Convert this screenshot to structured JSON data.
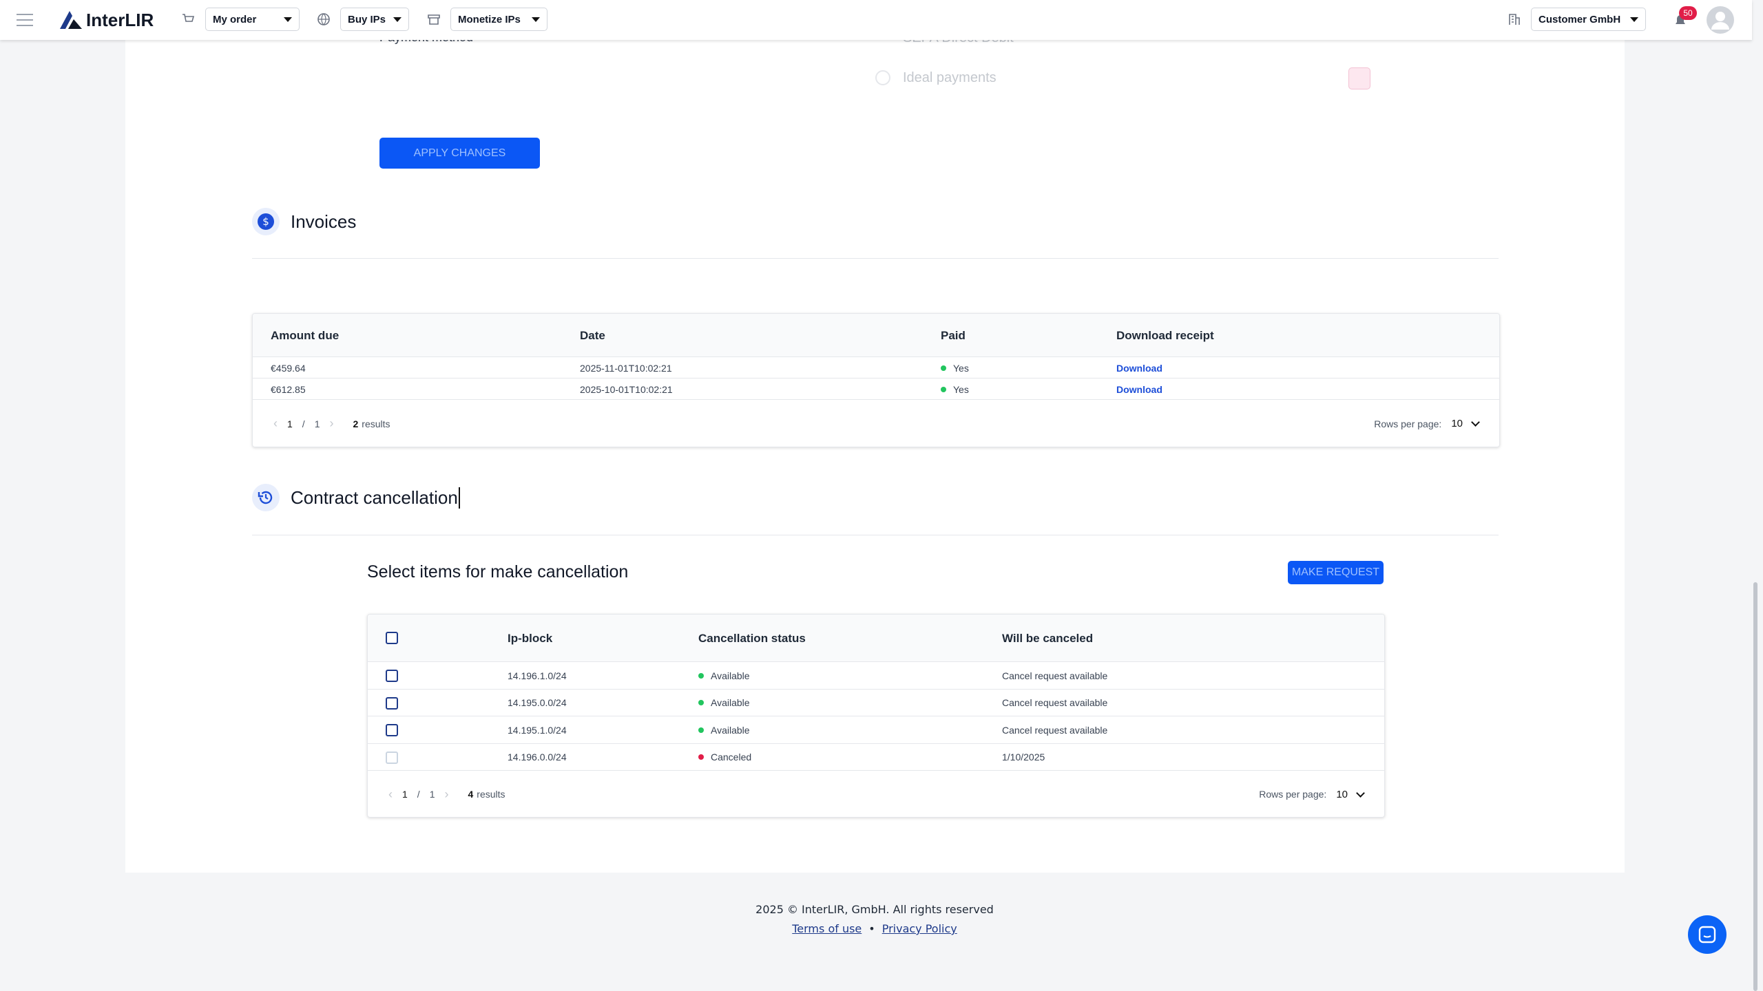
{
  "header": {
    "brand": "InterLIR",
    "nav": [
      "My order",
      "Buy IPs",
      "Monetize IPs"
    ],
    "company": "Customer GmbH",
    "notifications": "50"
  },
  "payment": {
    "label": "Payment method",
    "options": [
      "SEPA Direct Debit",
      "Ideal payments"
    ],
    "apply_button": "APPLY CHANGES"
  },
  "invoices": {
    "title": "Invoices",
    "columns": [
      "Amount due",
      "Date",
      "Paid",
      "Download receipt"
    ],
    "rows": [
      [
        "€459.64",
        "2025-11-01T10:02:21",
        "Yes",
        "Download"
      ],
      [
        "€612.85",
        "2025-10-01T10:02:21",
        "Yes",
        "Download"
      ]
    ],
    "pagination": {
      "page": "1",
      "separator": "/",
      "total_pages": "1",
      "count": "2",
      "results_label": "results",
      "rows_label": "Rows per page:",
      "rows_per_page": "10"
    }
  },
  "cancellation": {
    "title": "Contract cancellation",
    "subtitle": "Select items for make cancellation",
    "button": "MAKE REQUEST",
    "columns": [
      "Ip-block",
      "Cancellation status",
      "Will be canceled"
    ],
    "rows": [
      {
        "ip_block": "14.196.1.0/24",
        "status": "Available",
        "color": "#22c55e",
        "will_be_canceled": "Cancel request available"
      },
      {
        "ip_block": "14.195.0.0/24",
        "status": "Available",
        "color": "#22c55e",
        "will_be_canceled": "Cancel request available"
      },
      {
        "ip_block": "14.195.1.0/24",
        "status": "Available",
        "color": "#22c55e",
        "will_be_canceled": "Cancel request available"
      },
      {
        "ip_block": "14.196.0.0/24",
        "status": "Canceled",
        "color": "#e11d48",
        "will_be_canceled": "1/10/2025"
      }
    ],
    "pagination": {
      "page": "1",
      "separator": "/",
      "total_pages": "1",
      "count": "4",
      "results_label": "results",
      "rows_label": "Rows per page:",
      "rows_per_page": "10"
    }
  },
  "footer": {
    "copyright": "2025 © InterLIR, GmbH. All rights reserved",
    "links": [
      "Terms of use",
      "Privacy Policy"
    ],
    "separator": "•"
  }
}
